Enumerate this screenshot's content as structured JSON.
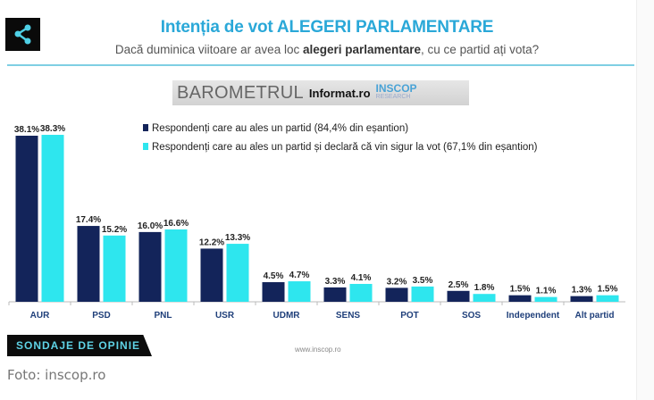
{
  "header": {
    "title": "Intenția de vot ALEGERI PARLAMENTARE",
    "subtitle_pre": "Dacă duminica viitoare ar avea loc ",
    "subtitle_bold": "alegeri parlamentare",
    "subtitle_post": ", cu ce partid ați vota?",
    "share_icon": "share-icon"
  },
  "logo": {
    "barometrul": "BAROMETRUL",
    "informat": "Informat.ro",
    "inscop": "INSCOP",
    "research": "RESEARCH"
  },
  "footer": {
    "badge": "SONDAJE DE OPINIE",
    "website": "www.inscop.ro",
    "credit": "Foto: inscop.ro"
  },
  "chart_data": {
    "type": "bar",
    "title": "",
    "categories": [
      "AUR",
      "PSD",
      "PNL",
      "USR",
      "UDMR",
      "SENS",
      "POT",
      "SOS",
      "Independent",
      "Alt partid"
    ],
    "series": [
      {
        "name": "Respondenți care au ales un partid (84,4% din eșantion)",
        "color": "#13245a",
        "values": [
          38.1,
          17.4,
          16.0,
          12.2,
          4.5,
          3.3,
          3.2,
          2.5,
          1.5,
          1.3
        ]
      },
      {
        "name": "Respondenți care au ales un partid și declară că vin sigur la vot (67,1% din eșantion)",
        "color": "#2ee6ee",
        "values": [
          38.3,
          15.2,
          16.6,
          13.3,
          4.7,
          4.1,
          3.5,
          1.8,
          1.1,
          1.5
        ]
      }
    ],
    "ylim": [
      0,
      40
    ],
    "grid": false,
    "legend": "top-center",
    "data_labels": true
  }
}
